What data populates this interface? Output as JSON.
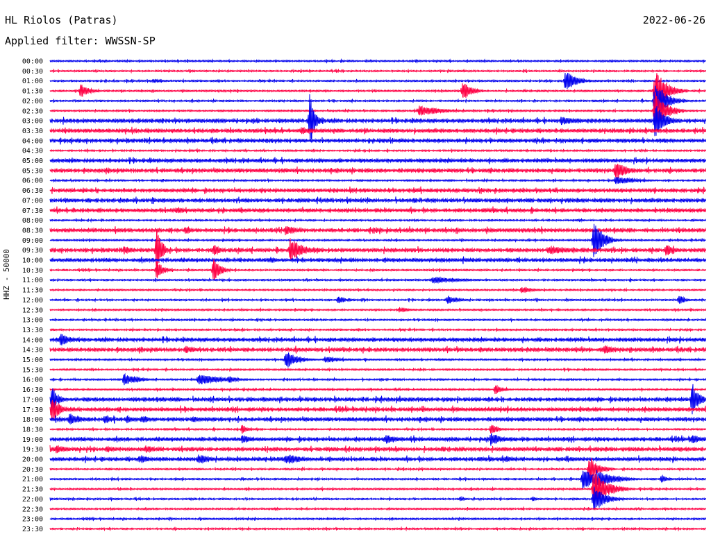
{
  "header": {
    "station": "HL Riolos (Patras)",
    "filter": "Applied filter: WWSSN-SP",
    "date": "2022-06-26"
  },
  "chart_data": {
    "type": "line",
    "ylabel": "HHZ - 50000",
    "colors": {
      "even": "#0000ee",
      "odd": "#ff0044"
    },
    "row_labels": [
      "00:00",
      "00:30",
      "01:00",
      "01:30",
      "02:00",
      "02:30",
      "03:00",
      "03:30",
      "04:00",
      "04:30",
      "05:00",
      "05:30",
      "06:00",
      "06:30",
      "07:00",
      "07:30",
      "08:00",
      "08:30",
      "09:00",
      "09:30",
      "10:00",
      "10:30",
      "11:00",
      "11:30",
      "12:00",
      "12:30",
      "13:00",
      "13:30",
      "14:00",
      "14:30",
      "15:00",
      "15:30",
      "16:00",
      "16:30",
      "17:00",
      "17:30",
      "18:00",
      "18:30",
      "19:00",
      "19:30",
      "20:00",
      "20:30",
      "21:00",
      "21:30",
      "22:00",
      "22:30",
      "23:00",
      "23:30"
    ],
    "x_range_minutes": [
      0,
      30
    ],
    "noise_level": [
      1,
      1,
      1,
      1,
      1,
      1,
      2,
      2,
      2,
      1,
      2,
      2,
      1,
      2,
      2,
      2,
      1,
      2,
      1,
      2,
      2,
      1,
      1,
      1,
      1,
      1,
      1,
      1,
      2,
      2,
      1,
      1,
      1,
      1,
      2,
      2,
      2,
      1,
      2,
      2,
      2,
      1,
      1,
      1,
      1,
      1,
      1,
      1
    ],
    "events": [
      {
        "row": 2,
        "t": 4.7,
        "amp": 3,
        "dur": 0.6
      },
      {
        "row": 2,
        "t": 23.6,
        "amp": 15,
        "dur": 0.5
      },
      {
        "row": 3,
        "t": 1.4,
        "amp": 11,
        "dur": 0.4
      },
      {
        "row": 3,
        "t": 18.9,
        "amp": 14,
        "dur": 0.4
      },
      {
        "row": 3,
        "t": 27.7,
        "amp": 35,
        "dur": 0.5
      },
      {
        "row": 4,
        "t": 27.7,
        "amp": 30,
        "dur": 0.5
      },
      {
        "row": 5,
        "t": 16.9,
        "amp": 8,
        "dur": 1.0
      },
      {
        "row": 5,
        "t": 27.7,
        "amp": 30,
        "dur": 0.5
      },
      {
        "row": 6,
        "t": 11.9,
        "amp": 40,
        "dur": 0.2
      },
      {
        "row": 6,
        "t": 23.4,
        "amp": 6,
        "dur": 1.0
      },
      {
        "row": 6,
        "t": 27.7,
        "amp": 28,
        "dur": 0.4
      },
      {
        "row": 7,
        "t": 11.5,
        "amp": 5,
        "dur": 1.2
      },
      {
        "row": 11,
        "t": 25.9,
        "amp": 14,
        "dur": 0.5
      },
      {
        "row": 12,
        "t": 25.9,
        "amp": 6,
        "dur": 1.0
      },
      {
        "row": 15,
        "t": 5.8,
        "amp": 5,
        "dur": 0.5
      },
      {
        "row": 17,
        "t": 6.2,
        "amp": 6,
        "dur": 0.3
      },
      {
        "row": 17,
        "t": 10.8,
        "amp": 9,
        "dur": 0.4
      },
      {
        "row": 18,
        "t": 24.9,
        "amp": 30,
        "dur": 0.4
      },
      {
        "row": 19,
        "t": 3.4,
        "amp": 6,
        "dur": 0.5
      },
      {
        "row": 19,
        "t": 4.9,
        "amp": 40,
        "dur": 0.2
      },
      {
        "row": 19,
        "t": 7.5,
        "amp": 9,
        "dur": 0.3
      },
      {
        "row": 19,
        "t": 11.0,
        "amp": 18,
        "dur": 0.6
      },
      {
        "row": 19,
        "t": 22.8,
        "amp": 6,
        "dur": 1.2
      },
      {
        "row": 19,
        "t": 28.2,
        "amp": 8,
        "dur": 0.5
      },
      {
        "row": 21,
        "t": 4.9,
        "amp": 14,
        "dur": 0.3
      },
      {
        "row": 21,
        "t": 7.5,
        "amp": 18,
        "dur": 0.3
      },
      {
        "row": 22,
        "t": 17.5,
        "amp": 5,
        "dur": 1.4
      },
      {
        "row": 23,
        "t": 21.6,
        "amp": 5,
        "dur": 0.5
      },
      {
        "row": 24,
        "t": 13.2,
        "amp": 5,
        "dur": 0.5
      },
      {
        "row": 24,
        "t": 18.2,
        "amp": 6,
        "dur": 0.5
      },
      {
        "row": 24,
        "t": 28.8,
        "amp": 7,
        "dur": 0.3
      },
      {
        "row": 25,
        "t": 16.0,
        "amp": 4,
        "dur": 0.5
      },
      {
        "row": 28,
        "t": 0.5,
        "amp": 9,
        "dur": 0.5
      },
      {
        "row": 29,
        "t": 6.2,
        "amp": 6,
        "dur": 0.5
      },
      {
        "row": 29,
        "t": 25.4,
        "amp": 8,
        "dur": 0.4
      },
      {
        "row": 30,
        "t": 10.8,
        "amp": 14,
        "dur": 0.5
      },
      {
        "row": 30,
        "t": 12.6,
        "amp": 5,
        "dur": 0.8
      },
      {
        "row": 32,
        "t": 3.4,
        "amp": 10,
        "dur": 0.6
      },
      {
        "row": 32,
        "t": 6.8,
        "amp": 8,
        "dur": 1.2
      },
      {
        "row": 32,
        "t": 8.2,
        "amp": 7,
        "dur": 0.3
      },
      {
        "row": 33,
        "t": 20.4,
        "amp": 8,
        "dur": 0.3
      },
      {
        "row": 34,
        "t": 0.1,
        "amp": 18,
        "dur": 0.3
      },
      {
        "row": 34,
        "t": 29.4,
        "amp": 25,
        "dur": 0.3
      },
      {
        "row": 35,
        "t": 0.1,
        "amp": 18,
        "dur": 0.4
      },
      {
        "row": 36,
        "t": 0.9,
        "amp": 9,
        "dur": 0.5
      },
      {
        "row": 36,
        "t": 2.5,
        "amp": 7,
        "dur": 0.4
      },
      {
        "row": 36,
        "t": 3.5,
        "amp": 6,
        "dur": 0.4
      },
      {
        "row": 36,
        "t": 4.2,
        "amp": 6,
        "dur": 0.4
      },
      {
        "row": 36,
        "t": 6.5,
        "amp": 4,
        "dur": 1.0
      },
      {
        "row": 37,
        "t": 8.8,
        "amp": 7,
        "dur": 0.3
      },
      {
        "row": 37,
        "t": 20.2,
        "amp": 8,
        "dur": 0.3
      },
      {
        "row": 38,
        "t": 8.8,
        "amp": 6,
        "dur": 0.6
      },
      {
        "row": 38,
        "t": 15.4,
        "amp": 7,
        "dur": 0.5
      },
      {
        "row": 38,
        "t": 20.2,
        "amp": 10,
        "dur": 0.5
      },
      {
        "row": 38,
        "t": 29.4,
        "amp": 7,
        "dur": 0.5
      },
      {
        "row": 39,
        "t": 0.3,
        "amp": 6,
        "dur": 0.6
      },
      {
        "row": 39,
        "t": 2.6,
        "amp": 6,
        "dur": 0.3
      },
      {
        "row": 39,
        "t": 4.4,
        "amp": 6,
        "dur": 0.6
      },
      {
        "row": 40,
        "t": 4.1,
        "amp": 6,
        "dur": 0.5
      },
      {
        "row": 40,
        "t": 6.8,
        "amp": 7,
        "dur": 0.6
      },
      {
        "row": 40,
        "t": 10.8,
        "amp": 8,
        "dur": 0.8
      },
      {
        "row": 40,
        "t": 20.9,
        "amp": 5,
        "dur": 0.4
      },
      {
        "row": 41,
        "t": 24.7,
        "amp": 20,
        "dur": 0.4
      },
      {
        "row": 42,
        "t": 24.4,
        "amp": 18,
        "dur": 0.6
      },
      {
        "row": 42,
        "t": 25.0,
        "amp": 14,
        "dur": 0.8
      },
      {
        "row": 42,
        "t": 28.0,
        "amp": 6,
        "dur": 0.3
      },
      {
        "row": 43,
        "t": 24.9,
        "amp": 28,
        "dur": 0.6
      },
      {
        "row": 44,
        "t": 24.9,
        "amp": 20,
        "dur": 0.5
      },
      {
        "row": 44,
        "t": 18.8,
        "amp": 4,
        "dur": 0.2
      },
      {
        "row": 44,
        "t": 22.1,
        "amp": 4,
        "dur": 0.2
      }
    ]
  }
}
